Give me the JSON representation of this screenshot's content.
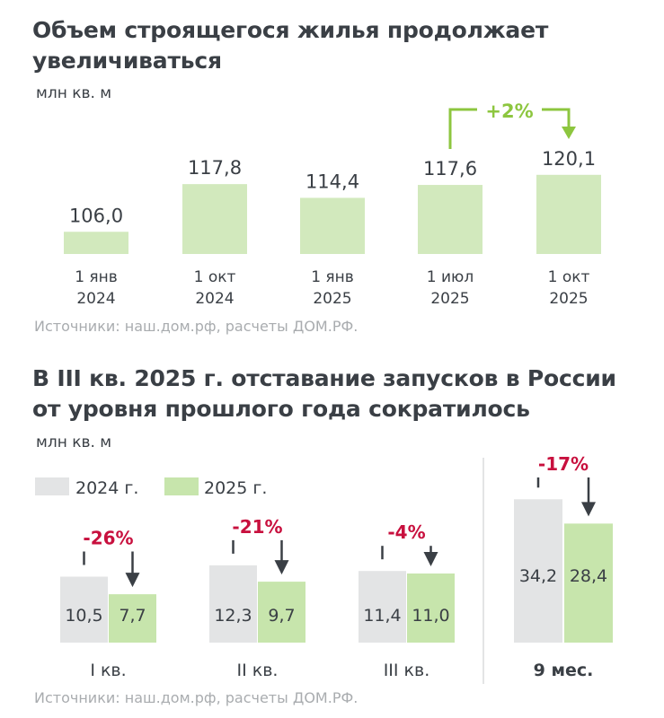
{
  "header": {
    "title_line1": "Объем строящегося жилья продолжает",
    "title_line2": "увеличиваться",
    "unit": "млн кв. м",
    "source": "Источники: наш.дом.рф, расчеты ДОМ.РФ."
  },
  "section2": {
    "title_line1": "В III кв. 2025 г. отставание запусков в России",
    "title_line2": "от уровня прошлого года сократилось",
    "unit": "млн кв. м",
    "source": "Источники: наш.дом.рф, расчеты ДОМ.РФ."
  },
  "colors": {
    "green": "#d2e9bd",
    "green_dark": "#c7e5ac",
    "gray": "#e3e4e5",
    "accent_green": "#8dc63f",
    "accent_red": "#c8103e",
    "arrow": "#3a3f45",
    "text": "#3a3f45"
  },
  "chart_data": [
    {
      "type": "bar",
      "title": "Объем строящегося жилья продолжает увеличиваться",
      "ylabel": "млн кв. м",
      "categories": [
        [
          "1 янв",
          "2024"
        ],
        [
          "1 окт",
          "2024"
        ],
        [
          "1 янв",
          "2025"
        ],
        [
          "1 июл",
          "2025"
        ],
        [
          "1 окт",
          "2025"
        ]
      ],
      "values": [
        106.0,
        117.8,
        114.4,
        117.6,
        120.1
      ],
      "labels": [
        "106,0",
        "117,8",
        "114,4",
        "117,6",
        "120,1"
      ],
      "ylim": [
        90,
        125
      ],
      "annotation": {
        "text": "+2%",
        "from": 3,
        "to": 4
      }
    },
    {
      "type": "bar",
      "title": "В III кв. 2025 г. отставание запусков в России от уровня прошлого года сократилось",
      "ylabel": "млн кв. м",
      "legend": [
        "2024 г.",
        "2025 г."
      ],
      "groups": [
        {
          "category": "I кв.",
          "v2024": 10.5,
          "v2025": 7.7,
          "l2024": "10,5",
          "l2025": "7,7",
          "change": "-26%",
          "bold": false
        },
        {
          "category": "II кв.",
          "v2024": 12.3,
          "v2025": 9.7,
          "l2024": "12,3",
          "l2025": "9,7",
          "change": "-21%",
          "bold": false
        },
        {
          "category": "III кв.",
          "v2024": 11.4,
          "v2025": 11.0,
          "l2024": "11,4",
          "l2025": "11,0",
          "change": "-4%",
          "bold": false
        },
        {
          "category": "9 мес.",
          "v2024": 34.2,
          "v2025": 28.4,
          "l2024": "34,2",
          "l2025": "28,4",
          "change": "-17%",
          "bold": true
        }
      ]
    }
  ]
}
